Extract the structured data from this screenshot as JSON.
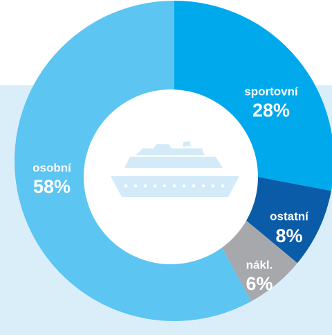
{
  "chart_data": {
    "type": "donut",
    "categories": [
      "sportovní",
      "ostatní",
      "nákl.",
      "osobní"
    ],
    "values": [
      28,
      8,
      6,
      58
    ],
    "value_labels": [
      "28%",
      "8%",
      "6%",
      "58%"
    ],
    "colors": [
      "#00a9ec",
      "#0a5ca8",
      "#a6a8ab",
      "#5cc5f2"
    ]
  }
}
